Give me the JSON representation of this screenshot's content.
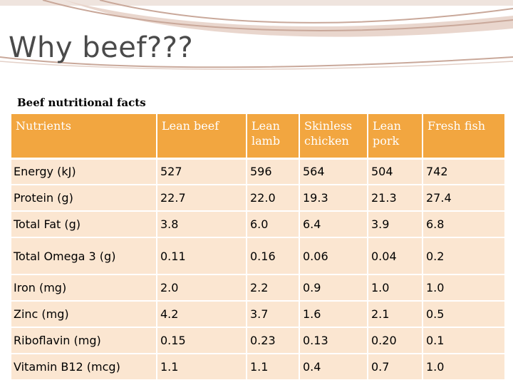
{
  "slide": {
    "title": "Why beef???",
    "caption": "Beef nutritional facts"
  },
  "colors": {
    "header_bg": "#f2a640",
    "row_bg": "#fbe6d1",
    "header_text": "#ffffff",
    "title_text": "#4a4a4a",
    "decoration": "#c9a89a"
  },
  "table": {
    "headers": [
      "Nutrients",
      "Lean beef",
      "Lean lamb",
      "Skinless chicken",
      "Lean pork",
      "Fresh fish"
    ],
    "rows": [
      {
        "nutrient": "Energy (kJ)",
        "values": [
          "527",
          "596",
          "564",
          "504",
          "742"
        ]
      },
      {
        "nutrient": "Protein (g)",
        "values": [
          "22.7",
          "22.0",
          "19.3",
          "21.3",
          "27.4"
        ]
      },
      {
        "nutrient": "Total Fat (g)",
        "values": [
          "3.8",
          "6.0",
          "6.4",
          "3.9",
          "6.8"
        ]
      },
      {
        "nutrient": "Total Omega 3 (g)",
        "values": [
          "0.11",
          "0.16",
          "0.06",
          "0.04",
          "0.2"
        ]
      },
      {
        "nutrient": "Iron (mg)",
        "values": [
          "2.0",
          "2.2",
          "0.9",
          "1.0",
          "1.0"
        ]
      },
      {
        "nutrient": "Zinc (mg)",
        "values": [
          "4.2",
          "3.7",
          "1.6",
          "2.1",
          "0.5"
        ]
      },
      {
        "nutrient": "Riboflavin (mg)",
        "values": [
          "0.15",
          "0.23",
          "0.13",
          "0.20",
          "0.1"
        ]
      },
      {
        "nutrient": "Vitamin B12 (mcg)",
        "values": [
          "1.1",
          "1.1",
          "0.4",
          "0.7",
          "1.0"
        ]
      }
    ]
  }
}
